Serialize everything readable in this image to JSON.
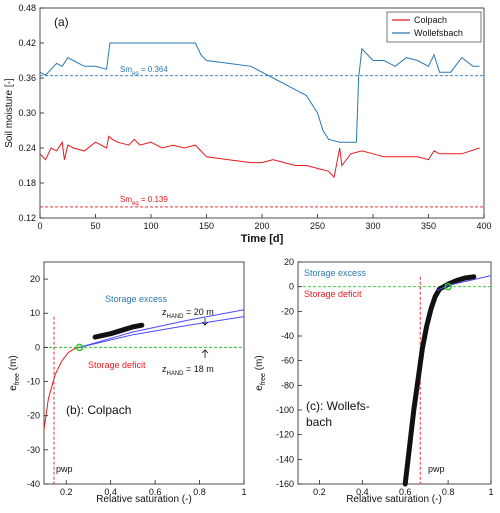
{
  "chart_data": [
    {
      "type": "line",
      "panel_label": "(a)",
      "xlabel": "Time [d]",
      "ylabel": "Soil moisture [-]",
      "xlim": [
        0,
        400
      ],
      "ylim": [
        0.12,
        0.48
      ],
      "xticks": [
        "0",
        "50",
        "100",
        "150",
        "200",
        "250",
        "300",
        "350",
        "400"
      ],
      "yticks": [
        "0.48",
        "0.42",
        "0.36",
        "0.30",
        "0.24",
        "0.18",
        "0.12"
      ],
      "legend_position": "top-right",
      "grid": false,
      "series": [
        {
          "name": "Colpach",
          "color": "#e8191e",
          "x": [
            0,
            5,
            10,
            15,
            20,
            22,
            25,
            30,
            40,
            50,
            60,
            62,
            65,
            70,
            80,
            85,
            90,
            100,
            110,
            120,
            130,
            140,
            145,
            150,
            170,
            190,
            200,
            210,
            220,
            230,
            240,
            250,
            260,
            265,
            270,
            272,
            280,
            290,
            300,
            310,
            320,
            340,
            350,
            355,
            360,
            380,
            396
          ],
          "values": [
            0.23,
            0.22,
            0.24,
            0.235,
            0.25,
            0.22,
            0.245,
            0.24,
            0.235,
            0.25,
            0.24,
            0.26,
            0.255,
            0.25,
            0.245,
            0.255,
            0.245,
            0.25,
            0.24,
            0.245,
            0.24,
            0.245,
            0.235,
            0.225,
            0.22,
            0.215,
            0.215,
            0.22,
            0.215,
            0.21,
            0.21,
            0.205,
            0.2,
            0.19,
            0.24,
            0.21,
            0.23,
            0.235,
            0.23,
            0.225,
            0.225,
            0.225,
            0.22,
            0.235,
            0.23,
            0.23,
            0.24
          ]
        },
        {
          "name": "Wollefsbach",
          "color": "#2a78b6",
          "x": [
            0,
            5,
            10,
            15,
            20,
            25,
            30,
            35,
            40,
            50,
            60,
            63,
            65,
            70,
            80,
            100,
            120,
            140,
            145,
            150,
            170,
            190,
            200,
            210,
            220,
            230,
            240,
            250,
            255,
            260,
            270,
            280,
            285,
            287,
            290,
            300,
            310,
            320,
            330,
            340,
            350,
            355,
            360,
            370,
            380,
            390,
            396
          ],
          "values": [
            0.37,
            0.365,
            0.375,
            0.385,
            0.38,
            0.395,
            0.39,
            0.385,
            0.38,
            0.38,
            0.375,
            0.42,
            0.42,
            0.42,
            0.42,
            0.42,
            0.42,
            0.42,
            0.4,
            0.39,
            0.385,
            0.38,
            0.37,
            0.36,
            0.35,
            0.34,
            0.33,
            0.3,
            0.27,
            0.255,
            0.25,
            0.25,
            0.25,
            0.36,
            0.41,
            0.39,
            0.39,
            0.38,
            0.395,
            0.39,
            0.38,
            0.4,
            0.37,
            0.37,
            0.395,
            0.38,
            0.38
          ]
        }
      ],
      "reference_lines": [
        {
          "label": "Sm_eq = 0.364",
          "y": 0.364,
          "color": "#2a78b6",
          "style": "dashed"
        },
        {
          "label": "Sm_eq = 0.139",
          "y": 0.139,
          "color": "#e8191e",
          "style": "dashed"
        }
      ],
      "annotations": {
        "sm_blue_main": "Sm",
        "sm_blue_sub": "eq",
        "sm_blue_val": " = 0.364",
        "sm_red_main": "Sm",
        "sm_red_sub": "eq",
        "sm_red_val": " = 0.139"
      }
    },
    {
      "type": "line",
      "panel_label": "(b): Colpach",
      "xlabel": "Relative saturation (-)",
      "ylabel_main": "e",
      "ylabel_sub": "free",
      "ylabel_unit": " (m)",
      "xlim": [
        0.1,
        1.0
      ],
      "ylim": [
        -40,
        25
      ],
      "xticks": [
        "0.2",
        "0.4",
        "0.6",
        "0.8",
        "1"
      ],
      "yticks": [
        "20",
        "10",
        "0",
        "-10",
        "-20",
        "-30",
        "-40"
      ],
      "series": [
        {
          "name": "curve",
          "color": "#e8191e",
          "x": [
            0.1,
            0.12,
            0.15,
            0.18,
            0.21,
            0.24,
            0.26
          ],
          "values": [
            -24,
            -15,
            -8,
            -4,
            -1.5,
            -0.3,
            0
          ]
        },
        {
          "name": "observations",
          "color": "#111111",
          "x": [
            0.33,
            0.4,
            0.45,
            0.5,
            0.54
          ],
          "values": [
            3,
            4,
            5,
            6,
            6.5
          ]
        },
        {
          "name": "20 m",
          "color": "#4a4aff",
          "x": [
            0.26,
            0.5,
            0.75,
            1.0
          ],
          "values": [
            0,
            4.5,
            8,
            11
          ]
        },
        {
          "name": "18 m",
          "color": "#4a4aff",
          "x": [
            0.26,
            0.5,
            0.75,
            1.0
          ],
          "values": [
            0,
            3.7,
            6.5,
            9
          ]
        }
      ],
      "text": {
        "storage_excess": "Storage excess",
        "storage_deficit": "Storage deficit",
        "z1_main": "z",
        "z1_sub": "HAND",
        "z1_val": " = 20 m",
        "z2_main": "z",
        "z2_sub": "HAND",
        "z2_val": " = 18 m",
        "pwp": "pwp"
      },
      "pwp_x": 0.145
    },
    {
      "type": "scatter",
      "panel_label": "(c): Wollefs-\nbach",
      "panel_label_line1": "(c): Wollefs-",
      "panel_label_line2": "bach",
      "xlabel": "Relative saturation (-)",
      "ylabel_main": "e",
      "ylabel_sub": "free",
      "ylabel_unit": " (m)",
      "xlim": [
        0.1,
        1.0
      ],
      "ylim": [
        -160,
        20
      ],
      "xticks": [
        "0.2",
        "0.4",
        "0.6",
        "0.8",
        "1"
      ],
      "yticks": [
        "20",
        "0",
        "-20",
        "-40",
        "-60",
        "-80",
        "-100",
        "-120",
        "-140",
        "-160"
      ],
      "series": [
        {
          "name": "observations",
          "color": "#111111",
          "x": [
            0.6,
            0.62,
            0.64,
            0.66,
            0.68,
            0.7,
            0.72,
            0.74,
            0.76,
            0.78,
            0.8,
            0.84,
            0.88,
            0.92
          ],
          "values": [
            -160,
            -130,
            -100,
            -75,
            -50,
            -32,
            -18,
            -8,
            -2,
            0,
            2,
            5,
            7,
            8
          ]
        },
        {
          "name": "fit",
          "color": "#4a4aff",
          "x": [
            0.75,
            0.8,
            0.9,
            1.0
          ],
          "values": [
            -3,
            1,
            5,
            9
          ]
        }
      ],
      "text": {
        "storage_excess": "Storage excess",
        "storage_deficit": "Storage deficit",
        "pwp": "pwp"
      },
      "pwp_x": 0.67
    }
  ]
}
